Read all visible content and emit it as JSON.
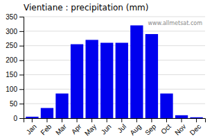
{
  "chart_data": {
    "type": "bar",
    "title": "Vientiane : precipitation (mm)",
    "categories": [
      "Jan",
      "Feb",
      "Mar",
      "Apr",
      "May",
      "Jun",
      "Jul",
      "Aug",
      "Sep",
      "Oct",
      "Nov",
      "Dec"
    ],
    "values": [
      5,
      35,
      85,
      255,
      270,
      260,
      260,
      320,
      290,
      85,
      10,
      3
    ],
    "color": "#0000ee",
    "ylim": [
      0,
      350
    ],
    "yticks": [
      0,
      50,
      100,
      150,
      200,
      250,
      300,
      350
    ],
    "grid": true,
    "annotations": [
      "www.allmetsat.com"
    ]
  }
}
